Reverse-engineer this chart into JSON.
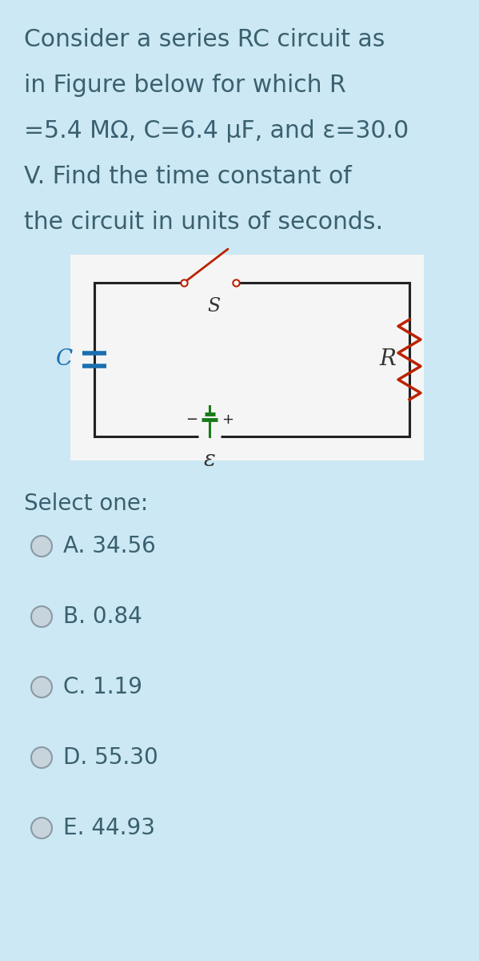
{
  "bg_color": "#cce8f4",
  "text_color": "#3a6070",
  "question_lines": [
    "Consider a series RC circuit as",
    "in Figure below for which R",
    "=5.4 MΩ, C=6.4 μF, and ε=30.0",
    "V. Find the time constant of",
    "the circuit in units of seconds."
  ],
  "select_one_text": "Select one:",
  "options": [
    "A. 34.56",
    "B. 0.84",
    "C. 1.19",
    "D. 55.30",
    "E. 44.93"
  ],
  "circuit_bg": "#f5f5f5",
  "circuit_color": "#222222",
  "capacitor_color": "#1a6faf",
  "resistor_color": "#bb2200",
  "switch_color": "#bb2200",
  "battery_color": "#1a7a1a",
  "label_C_color": "#1a6faf",
  "label_R_color": "#333333",
  "label_S_color": "#333333",
  "label_eps_color": "#333333",
  "radio_face": "#c8d4dc",
  "radio_edge": "#8a9aa4"
}
